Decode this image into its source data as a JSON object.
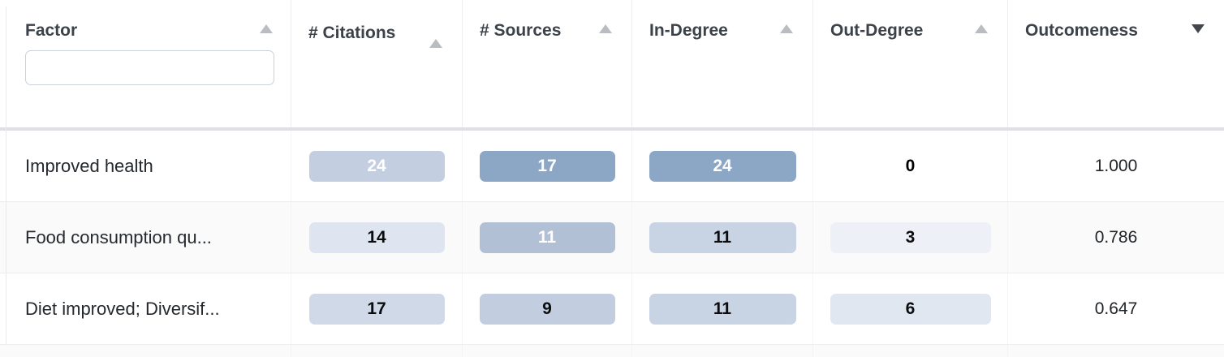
{
  "table": {
    "columns": [
      {
        "id": "factor",
        "label": "Factor",
        "sort_icon": "asc",
        "sort_active": false,
        "filter_value": "",
        "filter_placeholder": ""
      },
      {
        "id": "citations",
        "label": "# Citations",
        "sort_icon": "asc",
        "sort_active": false
      },
      {
        "id": "sources",
        "label": "# Sources",
        "sort_icon": "asc",
        "sort_active": false
      },
      {
        "id": "in_degree",
        "label": "In-Degree",
        "sort_icon": "asc",
        "sort_active": false
      },
      {
        "id": "out_degree",
        "label": "Out-Degree",
        "sort_icon": "asc",
        "sort_active": false
      },
      {
        "id": "outcomeness",
        "label": "Outcomeness",
        "sort_icon": "desc",
        "sort_active": true
      }
    ],
    "colors": {
      "header_text": "#3c4249",
      "sort_arrow_inactive": "#b9bdc1",
      "sort_arrow_active": "#43474b",
      "row_stripe": "#fafafb",
      "heat_strong": "#8ca6c5",
      "heat_weak": "#edf1f7"
    },
    "rows": [
      {
        "factor": "Improved health",
        "cells": [
          {
            "value": "24",
            "bg": "#c3cfe1",
            "fg": "#ffffff"
          },
          {
            "value": "17",
            "bg": "#8ca6c5",
            "fg": "#ffffff"
          },
          {
            "value": "24",
            "bg": "#8ca6c5",
            "fg": "#ffffff"
          },
          {
            "value": "0",
            "bg": "",
            "fg": "#000000"
          },
          {
            "value": "1.000",
            "bg": "",
            "fg": "#212529"
          }
        ]
      },
      {
        "factor": "Food consumption qu...",
        "cells": [
          {
            "value": "14",
            "bg": "#dfe5f0",
            "fg": "#0a0c0e"
          },
          {
            "value": "11",
            "bg": "#b2c0d6",
            "fg": "#ffffff"
          },
          {
            "value": "11",
            "bg": "#c8d3e4",
            "fg": "#0a0c0e"
          },
          {
            "value": "3",
            "bg": "#edf1f7",
            "fg": "#0a0c0e"
          },
          {
            "value": "0.786",
            "bg": "",
            "fg": "#212529"
          }
        ]
      },
      {
        "factor": "Diet improved; Diversif...",
        "cells": [
          {
            "value": "17",
            "bg": "#cfd9e7",
            "fg": "#0a0c0e"
          },
          {
            "value": "9",
            "bg": "#c2cedf",
            "fg": "#0a0c0e"
          },
          {
            "value": "11",
            "bg": "#c8d3e4",
            "fg": "#0a0c0e"
          },
          {
            "value": "6",
            "bg": "#e1e7f1",
            "fg": "#0a0c0e"
          },
          {
            "value": "0.647",
            "bg": "",
            "fg": "#212529"
          }
        ]
      }
    ]
  }
}
